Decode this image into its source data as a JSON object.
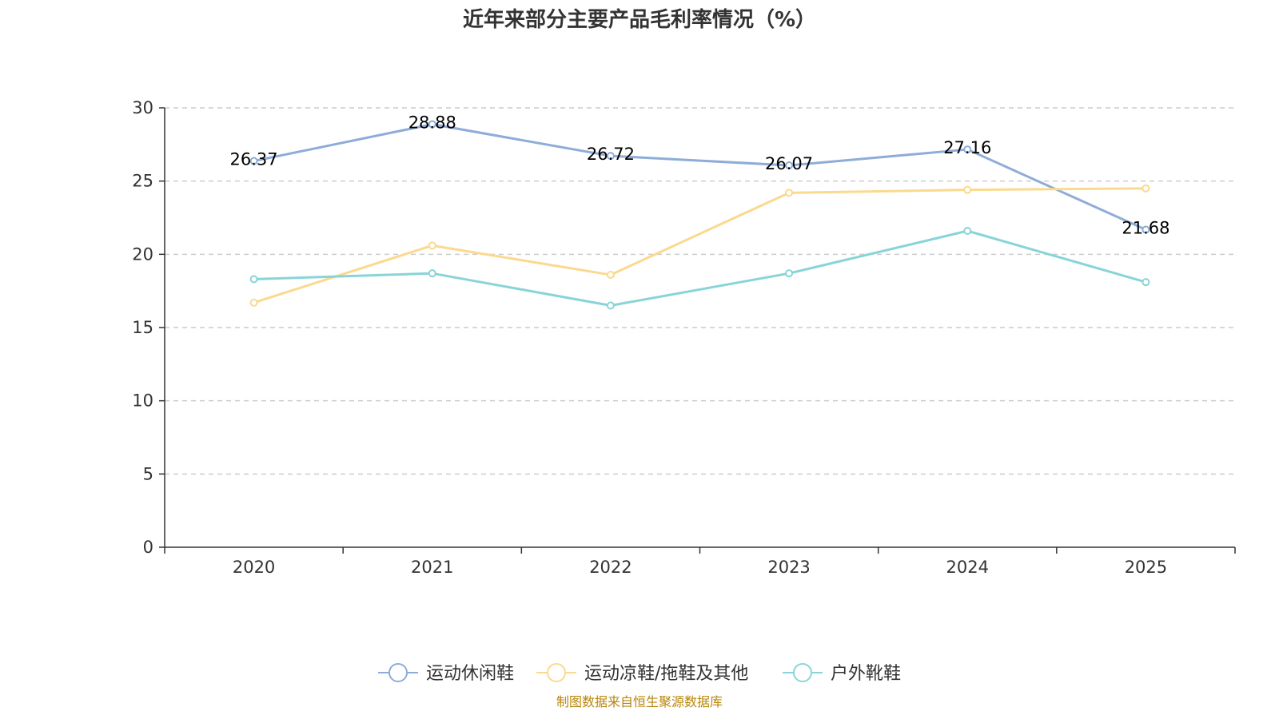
{
  "chart_data": {
    "type": "line",
    "title": "近年来部分主要产品毛利率情况（%）",
    "xlabel": "",
    "ylabel": "",
    "categories": [
      "2020",
      "2021",
      "2022",
      "2023",
      "2024",
      "2025"
    ],
    "ylim": [
      0,
      30
    ],
    "yticks": [
      "0",
      "5",
      "10",
      "15",
      "20",
      "25",
      "30"
    ],
    "grid": true,
    "legend_position": "bottom",
    "series": [
      {
        "name": "运动休闲鞋",
        "color": "#8eacd8",
        "values": [
          26.37,
          28.88,
          26.72,
          26.07,
          27.16,
          21.68
        ],
        "labels": [
          "26.37",
          "28.88",
          "26.72",
          "26.07",
          "27.16",
          "21.68"
        ]
      },
      {
        "name": "运动凉鞋/拖鞋及其他",
        "color": "#fbd98e",
        "values": [
          16.7,
          20.6,
          18.6,
          24.2,
          24.4,
          24.5
        ]
      },
      {
        "name": "户外靴鞋",
        "color": "#88d4d8",
        "values": [
          18.3,
          18.7,
          16.5,
          18.7,
          21.6,
          18.1
        ]
      }
    ],
    "source": "制图数据来自恒生聚源数据库"
  }
}
